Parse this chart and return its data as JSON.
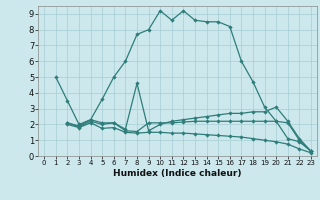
{
  "xlabel": "Humidex (Indice chaleur)",
  "bg_color": "#cce8ec",
  "grid_color": "#a8cdd4",
  "line_color": "#2e7d7a",
  "xlim": [
    -0.5,
    23.5
  ],
  "ylim": [
    0,
    9.5
  ],
  "xticks": [
    0,
    1,
    2,
    3,
    4,
    5,
    6,
    7,
    8,
    9,
    10,
    11,
    12,
    13,
    14,
    15,
    16,
    17,
    18,
    19,
    20,
    21,
    22,
    23
  ],
  "yticks": [
    0,
    1,
    2,
    3,
    4,
    5,
    6,
    7,
    8,
    9
  ],
  "series1_x": [
    1,
    2,
    3,
    4,
    5,
    6,
    7,
    8,
    9,
    10,
    11,
    12,
    13,
    14,
    15,
    16,
    17,
    18,
    19,
    20,
    21,
    22,
    23
  ],
  "series1_y": [
    5.0,
    3.5,
    2.0,
    2.3,
    3.6,
    5.0,
    6.0,
    7.7,
    8.0,
    9.2,
    8.6,
    9.2,
    8.6,
    8.5,
    8.5,
    8.2,
    6.0,
    4.7,
    3.1,
    2.2,
    1.1,
    0.9,
    0.3
  ],
  "series2_x": [
    2,
    3,
    4,
    5,
    6,
    7,
    8,
    9,
    10,
    11,
    12,
    13,
    14,
    15,
    16,
    17,
    18,
    19,
    20,
    21,
    22,
    23
  ],
  "series2_y": [
    2.1,
    1.9,
    2.3,
    2.1,
    2.1,
    1.7,
    4.6,
    1.6,
    2.0,
    2.2,
    2.3,
    2.4,
    2.5,
    2.6,
    2.7,
    2.7,
    2.8,
    2.8,
    3.1,
    2.2,
    1.1,
    0.3
  ],
  "series3_x": [
    2,
    3,
    4,
    5,
    6,
    7,
    8,
    9,
    10,
    11,
    12,
    13,
    14,
    15,
    16,
    17,
    18,
    19,
    20,
    21,
    22,
    23
  ],
  "series3_y": [
    2.1,
    1.85,
    2.2,
    2.0,
    2.1,
    1.6,
    1.55,
    2.1,
    2.1,
    2.1,
    2.15,
    2.2,
    2.2,
    2.2,
    2.2,
    2.2,
    2.2,
    2.2,
    2.2,
    2.1,
    1.0,
    0.3
  ],
  "series4_x": [
    2,
    3,
    4,
    5,
    6,
    7,
    8,
    9,
    10,
    11,
    12,
    13,
    14,
    15,
    16,
    17,
    18,
    19,
    20,
    21,
    22,
    23
  ],
  "series4_y": [
    2.0,
    1.8,
    2.1,
    1.75,
    1.8,
    1.5,
    1.45,
    1.5,
    1.5,
    1.45,
    1.45,
    1.4,
    1.35,
    1.3,
    1.25,
    1.2,
    1.1,
    1.0,
    0.9,
    0.75,
    0.45,
    0.2
  ]
}
